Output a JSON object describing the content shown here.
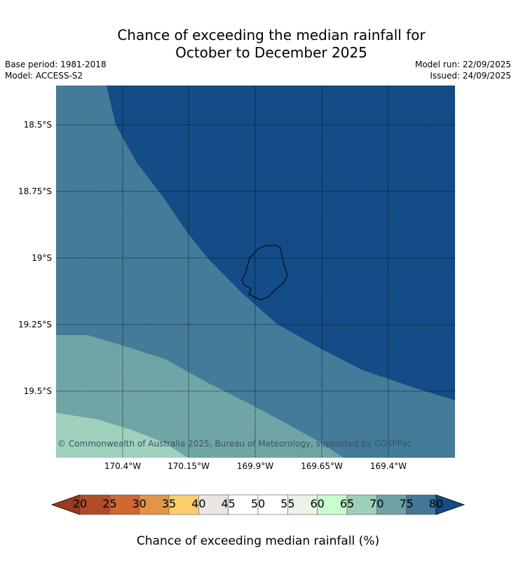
{
  "header": {
    "title_line1": "Chance of exceeding the median rainfall for",
    "title_line2": "October to December 2025",
    "base_period": "Base period: 1981-2018",
    "model": "Model: ACCESS-S2",
    "model_run": "Model run: 22/09/2025",
    "issued": "Issued: 24/09/2025"
  },
  "map": {
    "lat_labels": [
      "18.5°S",
      "18.75°S",
      "19°S",
      "19.25°S",
      "19.5°S"
    ],
    "lon_labels": [
      "170.4°W",
      "170.15°W",
      "169.9°W",
      "169.65°W",
      "169.4°W"
    ],
    "copyright": "© Commonwealth of Australia 2025, Bureau of Meteorology, supported by COSPPac",
    "region_colors": {
      "above_80": "#134c86",
      "75_80": "#437b99",
      "70_75": "#70a5a6",
      "65_70": "#9fd1bd"
    },
    "coastline_color": "#000000",
    "grid": true
  },
  "colorbar": {
    "title": "Chance of exceeding median rainfall (%)",
    "ticks": [
      "20",
      "25",
      "30",
      "35",
      "40",
      "45",
      "50",
      "55",
      "60",
      "65",
      "70",
      "75",
      "80"
    ],
    "colors": [
      "#b14b28",
      "#cf6833",
      "#e19548",
      "#fdcd6c",
      "#ebe6e2",
      "#ffffff",
      "#ffffff",
      "#e9f6e7",
      "#c8fdcc",
      "#9dcfba",
      "#6ea3a5",
      "#42779a"
    ],
    "under_color": "#9a3b21",
    "over_color": "#134c86"
  }
}
